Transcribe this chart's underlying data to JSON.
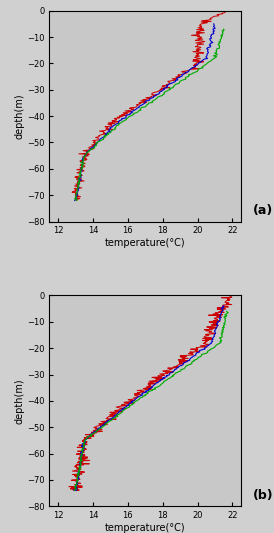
{
  "xlim": [
    11.5,
    22.5
  ],
  "ylim": [
    -80,
    0
  ],
  "xticks": [
    12,
    14,
    16,
    18,
    20,
    22
  ],
  "yticks": [
    0,
    -10,
    -20,
    -30,
    -40,
    -50,
    -60,
    -70,
    -80
  ],
  "xlabel": "temperature(°C)",
  "ylabel": "depth(m)",
  "label_a": "(a)",
  "label_b": "(b)",
  "background_color": "#e8e8e8",
  "panel_bg": "#d8d8d8",
  "red_color": "#cc0000",
  "blue_color": "#0000cc",
  "green_color": "#00aa00",
  "linewidth": 0.8,
  "title_fontsize": 7,
  "tick_fontsize": 6,
  "label_fontsize": 7
}
